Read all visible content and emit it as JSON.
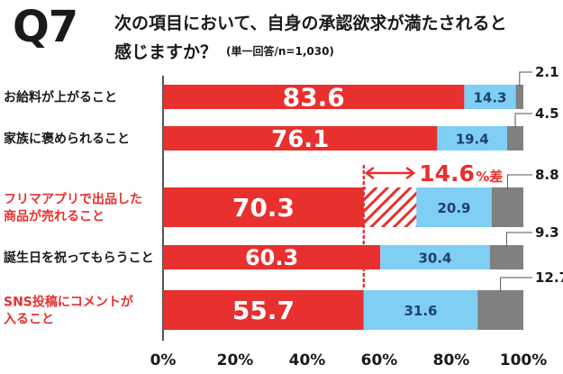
{
  "header": {
    "question_number": "Q7",
    "title_line1": "次の項目において、自身の承認欲求が満たされると",
    "title_line2": "感じますか？",
    "subtitle": "(単一回答/n=1,030)"
  },
  "chart_data": {
    "type": "bar",
    "orientation": "horizontal",
    "stacked": true,
    "categories": [
      {
        "lines": [
          "お給料が上がること"
        ],
        "highlight": false
      },
      {
        "lines": [
          "家族に褒められること"
        ],
        "highlight": false
      },
      {
        "lines": [
          "フリマアプリで出品した",
          "商品が売れること"
        ],
        "highlight": true
      },
      {
        "lines": [
          "誕生日を祝ってもらうこと"
        ],
        "highlight": false
      },
      {
        "lines": [
          "SNS投稿にコメントが",
          "入ること"
        ],
        "highlight": true
      }
    ],
    "series": [
      {
        "color": "#e8302e",
        "label_color": "#ffffff",
        "values": [
          83.6,
          76.1,
          70.3,
          60.3,
          55.7
        ]
      },
      {
        "color": "#7fcff4",
        "label_color": "#1f3f6e",
        "values": [
          14.3,
          19.4,
          20.9,
          30.4,
          31.6
        ]
      },
      {
        "color": "#808080",
        "label_color": "#1a1a1a",
        "values": [
          2.1,
          4.5,
          8.8,
          9.3,
          12.7
        ]
      }
    ],
    "value_labels": [
      [
        "83.6",
        "76.1",
        "70.3",
        "60.3",
        "55.7"
      ],
      [
        "14.3",
        "19.4",
        "20.9",
        "30.4",
        "31.6"
      ],
      [
        "2.1",
        "4.5",
        "8.8",
        "9.3",
        "12.7"
      ]
    ],
    "xlim": [
      0,
      100
    ],
    "x_ticks": [
      "0%",
      "20%",
      "40%",
      "60%",
      "80%",
      "100%"
    ],
    "annotation": {
      "value": "14.6",
      "suffix": "%差",
      "row": 2,
      "from": 55.7,
      "to": 70.3,
      "color": "#e8302e"
    },
    "grid": false
  }
}
